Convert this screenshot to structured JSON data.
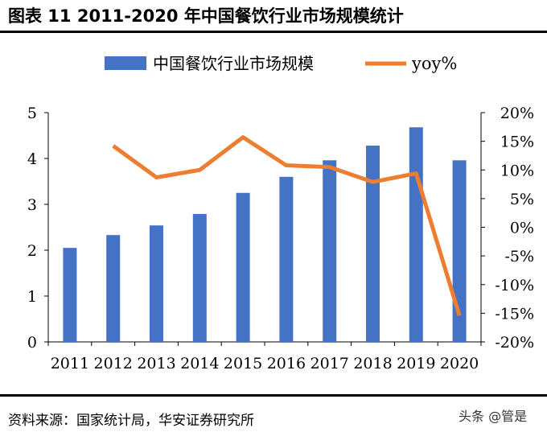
{
  "title": "图表 11   2011-2020 年中国餐饮行业市场规模统计",
  "source": "资料来源：国家统计局，华安证券研究所",
  "watermark": "头条 @管是",
  "chart_data": {
    "type": "bar+line",
    "categories": [
      "2011",
      "2012",
      "2013",
      "2014",
      "2015",
      "2016",
      "2017",
      "2018",
      "2019",
      "2020"
    ],
    "series": [
      {
        "name": "中国餐饮行业市场规模",
        "type": "bar",
        "axis": "left",
        "color": "#4472C4",
        "values": [
          2.05,
          2.33,
          2.54,
          2.79,
          3.25,
          3.6,
          3.96,
          4.28,
          4.68,
          3.96
        ]
      },
      {
        "name": "yoy%",
        "type": "line",
        "axis": "right",
        "color": "#ED7D31",
        "values": [
          null,
          14.2,
          8.7,
          10.0,
          15.7,
          10.8,
          10.5,
          7.9,
          9.4,
          -15.4
        ]
      }
    ],
    "left_axis": {
      "ylim": [
        0,
        5
      ],
      "ticks": [
        "0",
        "1",
        "2",
        "3",
        "4",
        "5"
      ]
    },
    "right_axis": {
      "ylim": [
        -20,
        20
      ],
      "ticks": [
        "-20%",
        "-15%",
        "-10%",
        "-5%",
        "0%",
        "5%",
        "10%",
        "15%",
        "20%"
      ]
    },
    "legend": "top",
    "grid": false
  }
}
